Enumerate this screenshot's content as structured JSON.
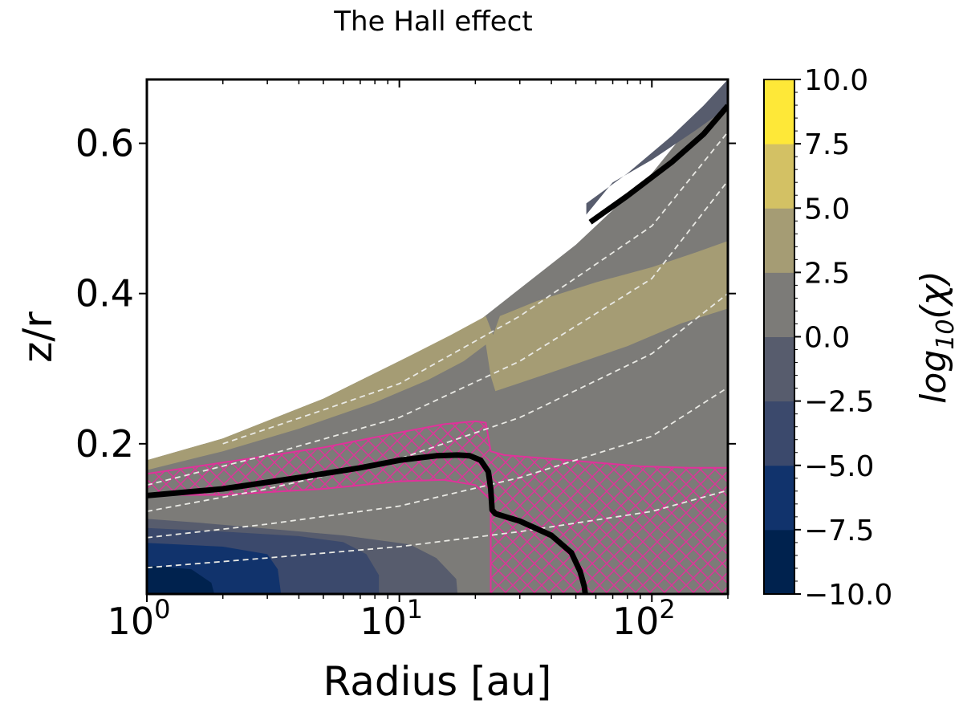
{
  "chart_data": {
    "type": "heatmap",
    "title": "The Hall effect",
    "xlabel": "Radius [au]",
    "ylabel": "z/r",
    "xscale": "log",
    "xlim": [
      1,
      200
    ],
    "ylim": [
      0,
      0.685
    ],
    "x_ticks": [
      {
        "value": 1,
        "base": "10",
        "exp": "0"
      },
      {
        "value": 10,
        "base": "10",
        "exp": "1"
      },
      {
        "value": 100,
        "base": "10",
        "exp": "2"
      }
    ],
    "y_ticks": [
      {
        "value": 0.2,
        "label": "0.2"
      },
      {
        "value": 0.4,
        "label": "0.4"
      },
      {
        "value": 0.6,
        "label": "0.6"
      }
    ],
    "colorbar": {
      "label_base": "log",
      "label_sub": "10",
      "label_tail": "(χ)",
      "levels": [
        -10,
        -7.5,
        -5,
        -2.5,
        0,
        2.5,
        5,
        7.5,
        10
      ],
      "tick_labels": [
        "−10.0",
        "−7.5",
        "−5.0",
        "−2.5",
        "0.0",
        "2.5",
        "5.0",
        "7.5",
        "10.0"
      ],
      "colors": [
        "#00224e",
        "#11336c",
        "#3b496c",
        "#575c6d",
        "#7c7b78",
        "#a59c74",
        "#d3c164",
        "#fee838"
      ]
    },
    "disk_surface": [
      [
        1,
        0.178
      ],
      [
        2,
        0.207
      ],
      [
        5,
        0.26
      ],
      [
        10,
        0.31
      ],
      [
        20,
        0.36
      ],
      [
        50,
        0.465
      ],
      [
        100,
        0.56
      ],
      [
        200,
        0.685
      ]
    ],
    "regions": [
      {
        "level_index": 3,
        "points": [
          [
            1,
            0.1
          ],
          [
            1.6,
            0.095
          ],
          [
            3,
            0.087
          ],
          [
            6,
            0.078
          ],
          [
            11,
            0.066
          ],
          [
            14,
            0.048
          ],
          [
            16.8,
            0.02
          ],
          [
            17,
            0
          ],
          [
            1,
            0
          ]
        ]
      },
      {
        "level_index": 2,
        "points": [
          [
            1,
            0.088
          ],
          [
            2,
            0.083
          ],
          [
            4,
            0.077
          ],
          [
            6,
            0.069
          ],
          [
            7.4,
            0.053
          ],
          [
            8.3,
            0.025
          ],
          [
            8.3,
            0
          ],
          [
            1,
            0
          ]
        ]
      },
      {
        "level_index": 1,
        "points": [
          [
            1,
            0.068
          ],
          [
            2,
            0.063
          ],
          [
            3,
            0.053
          ],
          [
            3.3,
            0.033
          ],
          [
            3.4,
            0
          ],
          [
            1,
            0
          ]
        ]
      },
      {
        "level_index": 0,
        "points": [
          [
            1,
            0.038
          ],
          [
            1.5,
            0.033
          ],
          [
            1.8,
            0.015
          ],
          [
            1.85,
            0
          ],
          [
            1,
            0
          ]
        ]
      },
      {
        "level_index": 5,
        "points": [
          [
            1,
            0.165
          ],
          [
            2,
            0.19
          ],
          [
            4,
            0.22
          ],
          [
            8,
            0.255
          ],
          [
            13,
            0.285
          ],
          [
            18,
            0.31
          ],
          [
            22,
            0.332
          ],
          [
            23,
            0.29
          ],
          [
            24,
            0.27
          ],
          [
            40,
            0.295
          ],
          [
            80,
            0.33
          ],
          [
            130,
            0.36
          ],
          [
            200,
            0.38
          ],
          [
            200,
            0.47
          ],
          [
            150,
            0.455
          ],
          [
            100,
            0.435
          ],
          [
            60,
            0.415
          ],
          [
            35,
            0.39
          ],
          [
            25,
            0.37
          ],
          [
            23.5,
            0.345
          ],
          [
            22,
            0.37
          ],
          [
            16,
            0.345
          ],
          [
            10,
            0.31
          ],
          [
            5,
            0.26
          ],
          [
            2,
            0.207
          ],
          [
            1,
            0.178
          ]
        ]
      },
      {
        "level_index": 3,
        "points": [
          [
            55,
            0.52
          ],
          [
            80,
            0.56
          ],
          [
            120,
            0.61
          ],
          [
            160,
            0.65
          ],
          [
            200,
            0.685
          ],
          [
            200,
            0.648
          ],
          [
            150,
            0.618
          ],
          [
            100,
            0.578
          ],
          [
            70,
            0.548
          ],
          [
            55,
            0.505
          ]
        ]
      }
    ],
    "hatched_region": [
      [
        1,
        0.16
      ],
      [
        2,
        0.175
      ],
      [
        5,
        0.195
      ],
      [
        10,
        0.215
      ],
      [
        15,
        0.226
      ],
      [
        20,
        0.23
      ],
      [
        22,
        0.228
      ],
      [
        23,
        0.19
      ],
      [
        26,
        0.185
      ],
      [
        40,
        0.18
      ],
      [
        60,
        0.175
      ],
      [
        90,
        0.17
      ],
      [
        140,
        0.168
      ],
      [
        200,
        0.168
      ],
      [
        200,
        0
      ],
      [
        23,
        0
      ],
      [
        23,
        0.105
      ],
      [
        23,
        0.125
      ],
      [
        20,
        0.145
      ],
      [
        15,
        0.152
      ],
      [
        10,
        0.15
      ],
      [
        5,
        0.14
      ],
      [
        2,
        0.132
      ],
      [
        1,
        0.132
      ]
    ],
    "boundary_lines": [
      [
        [
          1,
          0.131
        ],
        [
          2,
          0.14
        ],
        [
          4,
          0.155
        ],
        [
          7,
          0.168
        ],
        [
          10,
          0.178
        ],
        [
          14,
          0.184
        ],
        [
          17,
          0.185
        ],
        [
          19,
          0.184
        ],
        [
          21,
          0.178
        ],
        [
          22.5,
          0.163
        ],
        [
          23,
          0.14
        ],
        [
          23.3,
          0.112
        ],
        [
          24,
          0.107
        ],
        [
          30,
          0.097
        ],
        [
          40,
          0.078
        ],
        [
          48,
          0.055
        ],
        [
          52,
          0.03
        ],
        [
          54,
          0.01
        ],
        [
          54.5,
          0
        ]
      ],
      [
        [
          57,
          0.495
        ],
        [
          80,
          0.53
        ],
        [
          120,
          0.575
        ],
        [
          160,
          0.612
        ],
        [
          200,
          0.65
        ]
      ]
    ],
    "dashed_lines": [
      [
        [
          1,
          0.035
        ],
        [
          3,
          0.048
        ],
        [
          10,
          0.063
        ],
        [
          30,
          0.083
        ],
        [
          100,
          0.11
        ],
        [
          200,
          0.138
        ]
      ],
      [
        [
          1,
          0.075
        ],
        [
          3,
          0.093
        ],
        [
          10,
          0.117
        ],
        [
          30,
          0.155
        ],
        [
          100,
          0.21
        ],
        [
          200,
          0.275
        ]
      ],
      [
        [
          1,
          0.11
        ],
        [
          3,
          0.14
        ],
        [
          10,
          0.18
        ],
        [
          30,
          0.235
        ],
        [
          100,
          0.32
        ],
        [
          200,
          0.4
        ]
      ],
      [
        [
          1,
          0.145
        ],
        [
          3,
          0.185
        ],
        [
          10,
          0.235
        ],
        [
          30,
          0.31
        ],
        [
          100,
          0.42
        ],
        [
          200,
          0.55
        ]
      ],
      [
        [
          2,
          0.2
        ],
        [
          5,
          0.245
        ],
        [
          10,
          0.28
        ],
        [
          30,
          0.37
        ],
        [
          100,
          0.49
        ],
        [
          200,
          0.615
        ]
      ]
    ]
  }
}
